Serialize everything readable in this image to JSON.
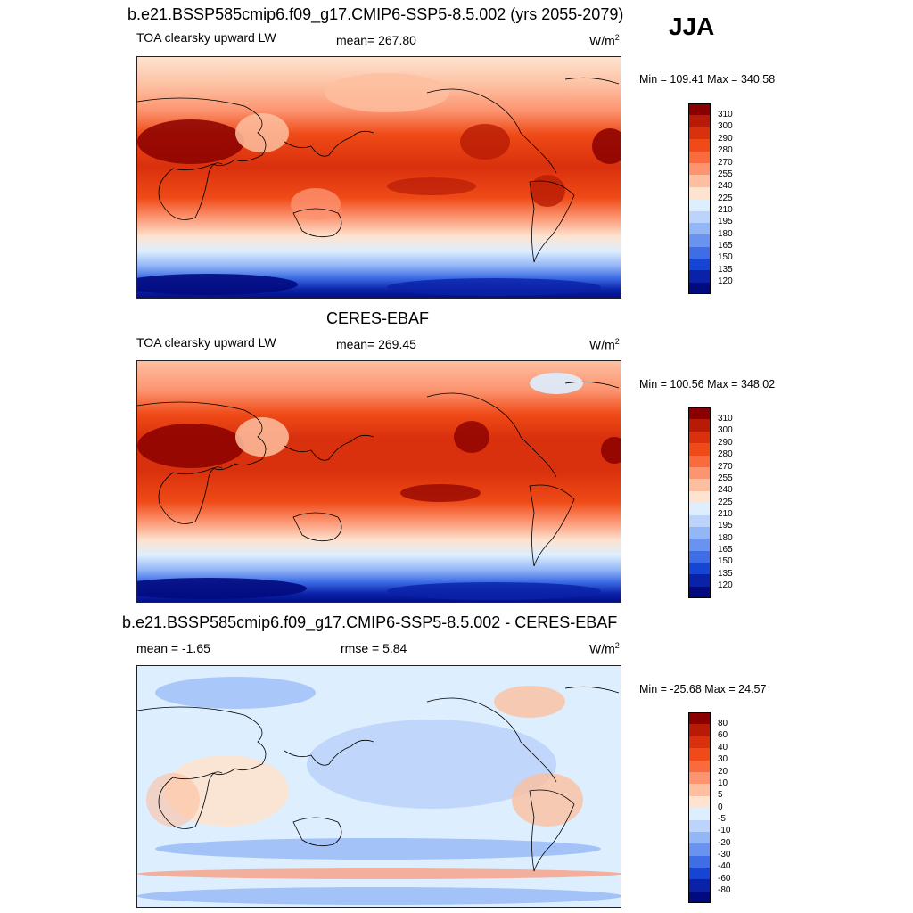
{
  "season": "JJA",
  "panels": [
    {
      "title": "b.e21.BSSP585cmip6.f09_g17.CMIP6-SSP5-8.5.002 (yrs 2055-2079)",
      "left_label": "TOA clearsky upward LW",
      "center_label": "mean= 267.80",
      "units_base": "W/m",
      "units_exp": "2",
      "minmax": "Min = 109.41 Max = 340.58"
    },
    {
      "title": "CERES-EBAF",
      "left_label": "TOA clearsky upward LW",
      "center_label": "mean= 269.45",
      "units_base": "W/m",
      "units_exp": "2",
      "minmax": "Min = 100.56 Max = 348.02"
    },
    {
      "title": "b.e21.BSSP585cmip6.f09_g17.CMIP6-SSP5-8.5.002 - CERES-EBAF",
      "left_label": "mean =  -1.65",
      "center_label": "rmse =   5.84",
      "units_base": "W/m",
      "units_exp": "2",
      "minmax": "Min = -25.68 Max =  24.57"
    }
  ],
  "colorbars": {
    "abs": {
      "ticks": [
        "310",
        "300",
        "290",
        "280",
        "270",
        "255",
        "240",
        "225",
        "210",
        "195",
        "180",
        "165",
        "150",
        "135",
        "120"
      ],
      "colors": [
        "#8a0000",
        "#b81b05",
        "#d9300d",
        "#ef4a17",
        "#fb6a3d",
        "#fc9470",
        "#fdbfa0",
        "#fde3d0",
        "#ddeeff",
        "#bcd4fb",
        "#93b6f6",
        "#6a93ef",
        "#3e6de6",
        "#1645d3",
        "#0a22a8",
        "#020a80"
      ]
    },
    "diff": {
      "ticks": [
        "80",
        "60",
        "40",
        "30",
        "20",
        "10",
        "5",
        "0",
        "-5",
        "-10",
        "-20",
        "-30",
        "-40",
        "-60",
        "-80"
      ],
      "colors": [
        "#8a0000",
        "#b81b05",
        "#d9300d",
        "#ef4a17",
        "#fb6a3d",
        "#fc9470",
        "#fdbfa0",
        "#fde3d0",
        "#ddeeff",
        "#bcd4fb",
        "#93b6f6",
        "#6a93ef",
        "#3e6de6",
        "#1645d3",
        "#0a22a8",
        "#020a80"
      ]
    }
  }
}
